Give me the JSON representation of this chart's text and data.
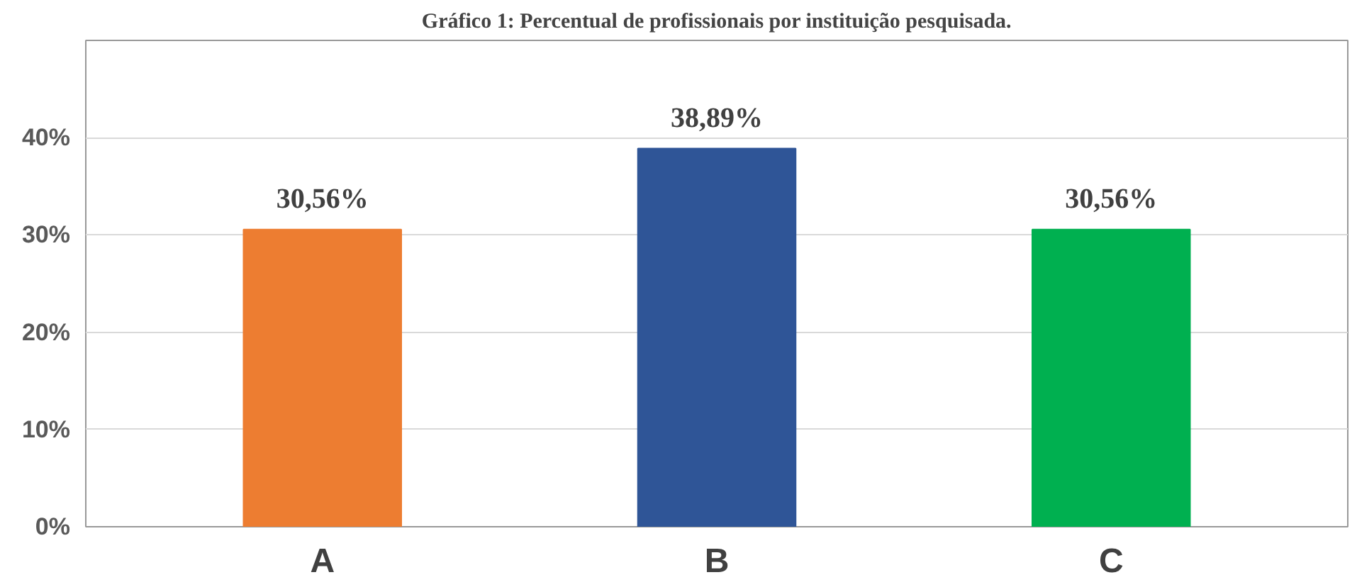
{
  "chart_data": {
    "type": "bar",
    "title": "Gráfico 1: Percentual de profissionais por instituição pesquisada.",
    "categories": [
      "A",
      "B",
      "C"
    ],
    "values": [
      30.56,
      38.89,
      30.56
    ],
    "colors": [
      "#ed7d31",
      "#2f5597",
      "#00b050"
    ],
    "value_labels": [
      "30,56%",
      "38,89%",
      "30,56%"
    ],
    "ylim": [
      0,
      50
    ],
    "yticks": [
      {
        "value": 0,
        "label": "0%"
      },
      {
        "value": 10,
        "label": "10%"
      },
      {
        "value": 20,
        "label": "20%"
      },
      {
        "value": 30,
        "label": "30%"
      },
      {
        "value": 40,
        "label": "40%"
      },
      {
        "value": 50,
        "label": null
      }
    ],
    "grid": "y"
  }
}
